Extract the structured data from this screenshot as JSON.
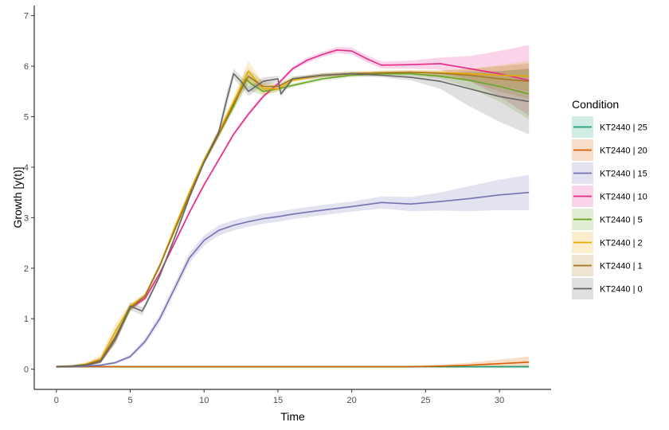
{
  "chart_data": {
    "type": "line",
    "title": "",
    "xlabel": "Time",
    "ylabel": "Growth [y(t)]",
    "xlim": [
      -1.5,
      33.5
    ],
    "ylim": [
      -0.4,
      7.2
    ],
    "x_ticks": [
      0,
      5,
      10,
      15,
      20,
      25,
      30
    ],
    "y_ticks": [
      0,
      1,
      2,
      3,
      4,
      5,
      6,
      7
    ],
    "grid": false,
    "legend": {
      "title": "Condition",
      "position": "right"
    },
    "series": [
      {
        "name": "KT2440 | 25",
        "color": "#1b9e77",
        "x": [
          0,
          5,
          10,
          15,
          20,
          25,
          30,
          32
        ],
        "y": [
          0.05,
          0.05,
          0.05,
          0.05,
          0.05,
          0.05,
          0.05,
          0.05
        ],
        "band": [
          0.02,
          0.02,
          0.02,
          0.02,
          0.02,
          0.02,
          0.03,
          0.03
        ]
      },
      {
        "name": "KT2440 | 20",
        "color": "#d95f02",
        "x": [
          0,
          5,
          10,
          15,
          20,
          24,
          26,
          28,
          30,
          32
        ],
        "y": [
          0.05,
          0.05,
          0.05,
          0.05,
          0.05,
          0.05,
          0.06,
          0.08,
          0.11,
          0.14
        ],
        "band": [
          0.02,
          0.02,
          0.02,
          0.02,
          0.02,
          0.02,
          0.03,
          0.05,
          0.08,
          0.11
        ]
      },
      {
        "name": "KT2440 | 15",
        "color": "#7570b3",
        "x": [
          0,
          1,
          2,
          3,
          4,
          5,
          6,
          7,
          8,
          9,
          10,
          11,
          12,
          13,
          14,
          15,
          16,
          18,
          20,
          22,
          24,
          26,
          28,
          30,
          32
        ],
        "y": [
          0.05,
          0.05,
          0.06,
          0.08,
          0.13,
          0.25,
          0.55,
          1.0,
          1.6,
          2.2,
          2.55,
          2.75,
          2.85,
          2.92,
          2.98,
          3.02,
          3.07,
          3.15,
          3.22,
          3.3,
          3.27,
          3.32,
          3.38,
          3.45,
          3.5
        ],
        "band": [
          0.02,
          0.02,
          0.02,
          0.02,
          0.03,
          0.04,
          0.06,
          0.08,
          0.09,
          0.1,
          0.1,
          0.1,
          0.1,
          0.1,
          0.1,
          0.1,
          0.1,
          0.1,
          0.1,
          0.12,
          0.14,
          0.18,
          0.25,
          0.3,
          0.35
        ]
      },
      {
        "name": "KT2440 | 10",
        "color": "#e7298a",
        "x": [
          0,
          1,
          2,
          3,
          4,
          5,
          6,
          7,
          8,
          9,
          10,
          11,
          12,
          13,
          14,
          15,
          16,
          17,
          18,
          19,
          20,
          21,
          22,
          24,
          26,
          28,
          30,
          32
        ],
        "y": [
          0.05,
          0.06,
          0.08,
          0.15,
          0.6,
          1.2,
          1.4,
          1.9,
          2.5,
          3.1,
          3.65,
          4.15,
          4.65,
          5.05,
          5.4,
          5.65,
          5.95,
          6.12,
          6.23,
          6.32,
          6.3,
          6.15,
          6.02,
          6.03,
          6.05,
          5.95,
          5.85,
          5.72
        ],
        "band": [
          0.02,
          0.02,
          0.02,
          0.03,
          0.06,
          0.05,
          0.04,
          0.04,
          0.04,
          0.04,
          0.04,
          0.04,
          0.04,
          0.04,
          0.04,
          0.04,
          0.04,
          0.05,
          0.05,
          0.06,
          0.07,
          0.07,
          0.07,
          0.08,
          0.12,
          0.25,
          0.45,
          0.7
        ]
      },
      {
        "name": "KT2440 | 5",
        "color": "#66a61e",
        "x": [
          0,
          1,
          2,
          3,
          4,
          5,
          6,
          7,
          8,
          9,
          10,
          11,
          12,
          12.8,
          13.2,
          14,
          15,
          16,
          18,
          20,
          22,
          24,
          26,
          28,
          30,
          32
        ],
        "y": [
          0.05,
          0.06,
          0.08,
          0.15,
          0.6,
          1.2,
          1.45,
          2.05,
          2.75,
          3.45,
          4.1,
          4.65,
          5.2,
          5.75,
          5.65,
          5.5,
          5.55,
          5.62,
          5.75,
          5.82,
          5.85,
          5.85,
          5.8,
          5.72,
          5.6,
          5.45
        ],
        "band": [
          0.02,
          0.02,
          0.02,
          0.03,
          0.06,
          0.05,
          0.05,
          0.05,
          0.05,
          0.05,
          0.05,
          0.06,
          0.08,
          0.18,
          0.15,
          0.08,
          0.05,
          0.04,
          0.04,
          0.04,
          0.04,
          0.04,
          0.05,
          0.15,
          0.3,
          0.5
        ]
      },
      {
        "name": "KT2440 | 2",
        "color": "#e6ab02",
        "x": [
          0,
          1,
          2,
          3,
          4,
          5,
          6,
          7,
          8,
          9,
          10,
          11,
          12,
          13,
          14,
          15,
          16,
          18,
          20,
          22,
          24,
          26,
          28,
          30,
          32
        ],
        "y": [
          0.05,
          0.06,
          0.1,
          0.2,
          0.75,
          1.25,
          1.45,
          2.05,
          2.8,
          3.5,
          4.15,
          4.7,
          5.3,
          5.9,
          5.55,
          5.55,
          5.72,
          5.82,
          5.85,
          5.87,
          5.88,
          5.87,
          5.85,
          5.82,
          5.8
        ],
        "band": [
          0.02,
          0.02,
          0.04,
          0.08,
          0.15,
          0.06,
          0.05,
          0.05,
          0.05,
          0.05,
          0.05,
          0.06,
          0.1,
          0.2,
          0.12,
          0.06,
          0.04,
          0.04,
          0.04,
          0.04,
          0.04,
          0.05,
          0.1,
          0.2,
          0.3
        ]
      },
      {
        "name": "KT2440 | 1",
        "color": "#a6761d",
        "x": [
          0,
          1,
          2,
          3,
          4,
          5,
          6,
          7,
          8,
          9,
          10,
          11,
          12,
          13,
          14,
          15,
          16,
          18,
          20,
          22,
          24,
          26,
          28,
          30,
          32
        ],
        "y": [
          0.05,
          0.06,
          0.09,
          0.18,
          0.65,
          1.22,
          1.45,
          2.05,
          2.75,
          3.45,
          4.1,
          4.65,
          5.25,
          5.8,
          5.6,
          5.6,
          5.75,
          5.82,
          5.85,
          5.87,
          5.88,
          5.86,
          5.82,
          5.75,
          5.7
        ],
        "band": [
          0.02,
          0.02,
          0.03,
          0.06,
          0.15,
          0.06,
          0.05,
          0.05,
          0.05,
          0.05,
          0.05,
          0.06,
          0.08,
          0.15,
          0.1,
          0.06,
          0.04,
          0.04,
          0.04,
          0.04,
          0.04,
          0.05,
          0.12,
          0.25,
          0.35
        ]
      },
      {
        "name": "KT2440 | 0",
        "color": "#666666",
        "x": [
          0,
          1,
          2,
          3,
          4,
          5,
          5.8,
          6,
          7,
          8,
          9,
          10,
          11,
          11.5,
          12,
          12.5,
          13,
          14,
          15,
          15.2,
          16,
          18,
          20,
          22,
          24,
          26,
          28,
          30,
          32
        ],
        "y": [
          0.05,
          0.06,
          0.08,
          0.15,
          0.6,
          1.25,
          1.15,
          1.25,
          1.85,
          2.6,
          3.4,
          4.1,
          4.7,
          5.3,
          5.85,
          5.7,
          5.5,
          5.7,
          5.75,
          5.45,
          5.75,
          5.82,
          5.85,
          5.82,
          5.78,
          5.7,
          5.55,
          5.4,
          5.3
        ],
        "band": [
          0.02,
          0.02,
          0.02,
          0.03,
          0.08,
          0.08,
          0.08,
          0.06,
          0.05,
          0.05,
          0.05,
          0.05,
          0.08,
          0.15,
          0.1,
          0.1,
          0.1,
          0.08,
          0.06,
          0.06,
          0.04,
          0.04,
          0.04,
          0.04,
          0.06,
          0.15,
          0.35,
          0.5,
          0.65
        ]
      }
    ]
  }
}
